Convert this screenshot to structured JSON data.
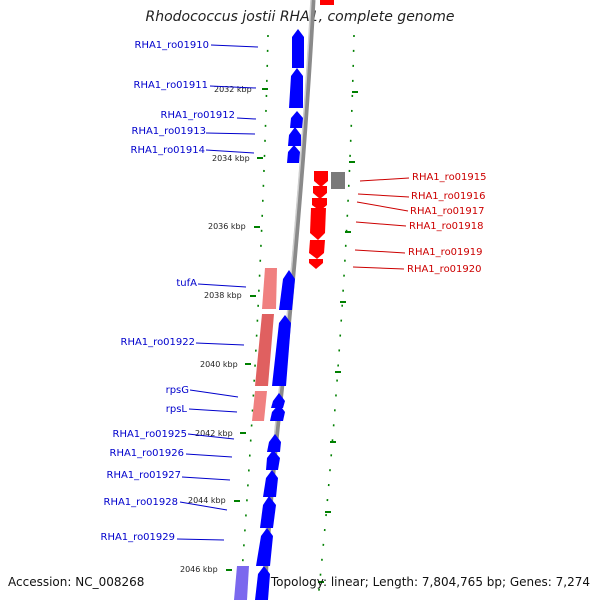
{
  "title": "Rhodococcus jostii RHA1, complete genome",
  "footer": {
    "accession": "Accession: NC_008268",
    "stats": "Topology: linear; Length: 7,804,765 bp; Genes: 7,274"
  },
  "colors": {
    "forward_gene": "#0000ff",
    "reverse_gene": "#ff0000",
    "pink_feature": "#f08080",
    "grey_feature": "#808080",
    "purple_feature": "#7b68ee",
    "tick": "#008000",
    "backbone": "#999999"
  },
  "kbp_ticks": [
    "2032 kbp",
    "2034 kbp",
    "2036 kbp",
    "2038 kbp",
    "2040 kbp",
    "2042 kbp",
    "2044 kbp",
    "2046 kbp"
  ],
  "left_labels": [
    "RHA1_ro01910",
    "RHA1_ro01911",
    "RHA1_ro01912",
    "RHA1_ro01913",
    "RHA1_ro01914",
    "tufA",
    "RHA1_ro01922",
    "rpsG",
    "rpsL",
    "RHA1_ro01925",
    "RHA1_ro01926",
    "RHA1_ro01927",
    "RHA1_ro01928",
    "RHA1_ro01929"
  ],
  "right_labels": [
    "RHA1_ro01915",
    "RHA1_ro01916",
    "RHA1_ro01917",
    "RHA1_ro01918",
    "RHA1_ro01919",
    "RHA1_ro01920"
  ]
}
